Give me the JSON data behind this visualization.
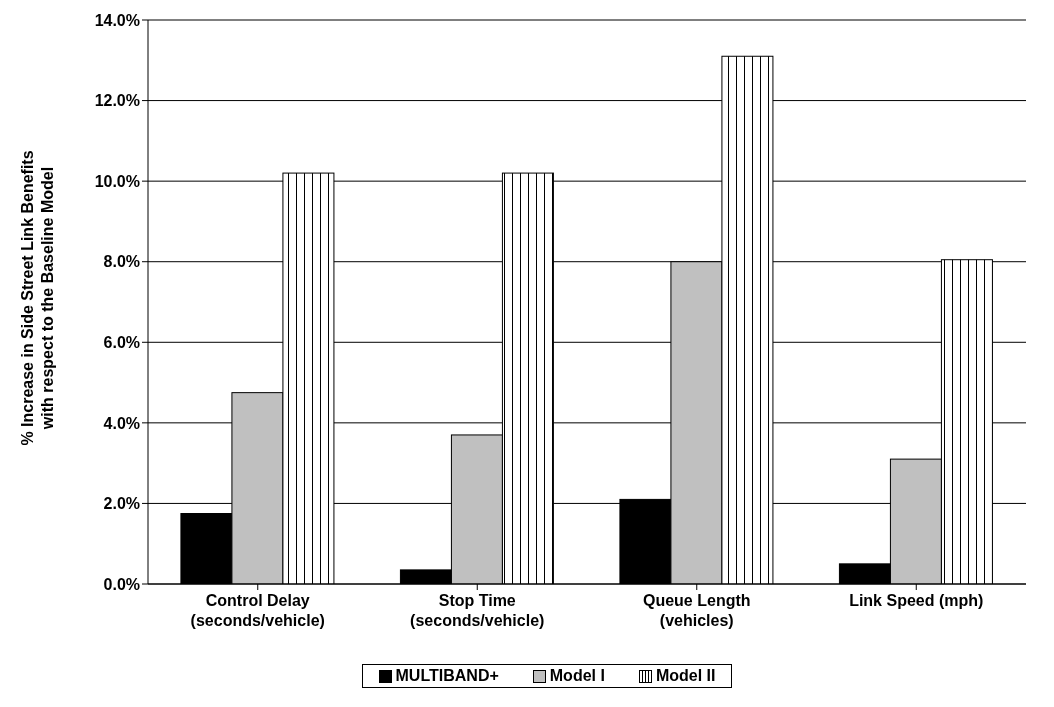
{
  "chart_data": {
    "type": "bar",
    "ylabel": "% Increase in Side Street Link Benefits\nwith respect to the Baseline Model",
    "categories": [
      "Control Delay\n(seconds/vehicle)",
      "Stop Time\n(seconds/vehicle)",
      "Queue Length\n(vehicles)",
      "Link Speed (mph)"
    ],
    "series": [
      {
        "name": "MULTIBAND+",
        "color": "#000000",
        "values": [
          1.75,
          0.35,
          2.1,
          0.5
        ]
      },
      {
        "name": "Model I",
        "color": "#c0c0c0",
        "values": [
          4.75,
          3.7,
          8.0,
          3.1
        ]
      },
      {
        "name": "Model II",
        "color": "#ffffff",
        "values": [
          10.2,
          10.2,
          13.1,
          8.05
        ]
      }
    ],
    "ylim": [
      0,
      14
    ],
    "yticks": [
      {
        "value": 0,
        "label": "0.0%"
      },
      {
        "value": 2,
        "label": "2.0%"
      },
      {
        "value": 4,
        "label": "4.0%"
      },
      {
        "value": 6,
        "label": "6.0%"
      },
      {
        "value": 8,
        "label": "8.0%"
      },
      {
        "value": 10,
        "label": "10.0%"
      },
      {
        "value": 12,
        "label": "12.0%"
      },
      {
        "value": 14,
        "label": "14.0%"
      }
    ],
    "grid": "y",
    "legend": "bottom"
  }
}
